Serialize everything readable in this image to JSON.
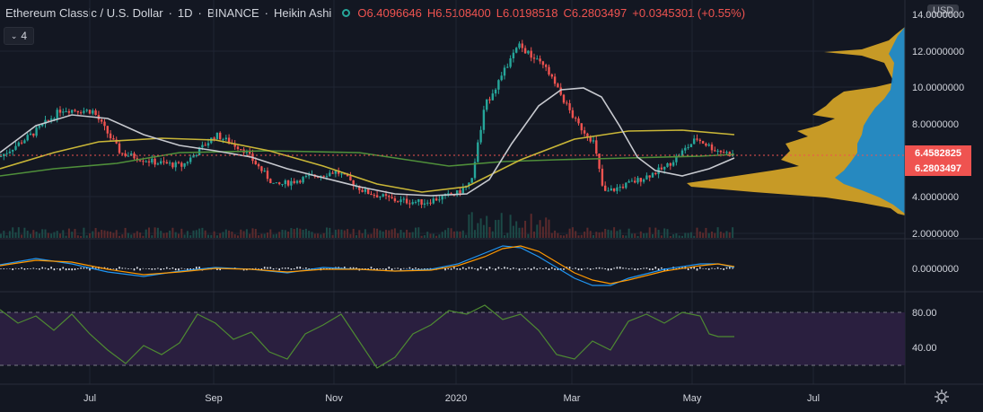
{
  "header": {
    "symbol": "Ethereum Classic / U.S. Dollar",
    "interval": "1D",
    "exchange": "BINANCE",
    "chart_style": "Heikin Ashi",
    "open": "O6.4096646",
    "high": "H6.5108400",
    "low": "L6.0198518",
    "close": "C6.2803497",
    "change": "+0.0345301 (+0.55%)"
  },
  "indicator_toggle": {
    "count": "4"
  },
  "currency": "USD",
  "price_tags": {
    "red": "6.4582825",
    "current": "6.2803497"
  },
  "price_axis": [
    "14.0000000",
    "12.0000000",
    "10.0000000",
    "8.0000000",
    "4.0000000",
    "2.0000000"
  ],
  "macd_axis": [
    "0.0000000"
  ],
  "rsi_axis": [
    "80.00",
    "40.00"
  ],
  "time_axis": [
    "Jul",
    "Sep",
    "Nov",
    "2020",
    "Mar",
    "May",
    "Jul"
  ],
  "colors": {
    "background": "#131722",
    "up": "#26a69a",
    "down": "#ef5350",
    "volume_profile": "#c79a26",
    "volume_profile_fill": "#1e88c8",
    "ma_white": "#c7c9cf",
    "ma_yellow": "#c9b637",
    "ma_green": "#4f8f3a",
    "rsi_band": "#2a1f3f",
    "rsi_line": "#4e8a32"
  },
  "chart_data": {
    "type": "line",
    "title": "Ethereum Classic / U.S. Dollar",
    "xlabel": "",
    "ylabel": "",
    "ylim": [
      2,
      14
    ],
    "x": [
      "2019-05-15",
      "2019-06-01",
      "2019-06-15",
      "2019-07-01",
      "2019-07-15",
      "2019-08-01",
      "2019-08-15",
      "2019-09-01",
      "2019-09-15",
      "2019-10-01",
      "2019-10-15",
      "2019-11-01",
      "2019-11-15",
      "2019-12-01",
      "2019-12-15",
      "2020-01-01",
      "2020-01-08",
      "2020-01-15",
      "2020-02-01",
      "2020-02-15",
      "2020-03-01",
      "2020-03-10",
      "2020-03-15",
      "2020-04-01",
      "2020-04-15",
      "2020-05-01",
      "2020-05-10",
      "2020-05-20"
    ],
    "series": [
      {
        "values": [
          6.2,
          7.5,
          8.8,
          8.7,
          6.4,
          5.9,
          5.7,
          7.4,
          6.6,
          4.6,
          5.0,
          5.4,
          4.3,
          3.8,
          3.7,
          4.2,
          4.8,
          9.0,
          12.3,
          11.0,
          8.1,
          7.0,
          4.2,
          4.9,
          5.6,
          7.2,
          6.6,
          6.28
        ]
      }
    ]
  }
}
